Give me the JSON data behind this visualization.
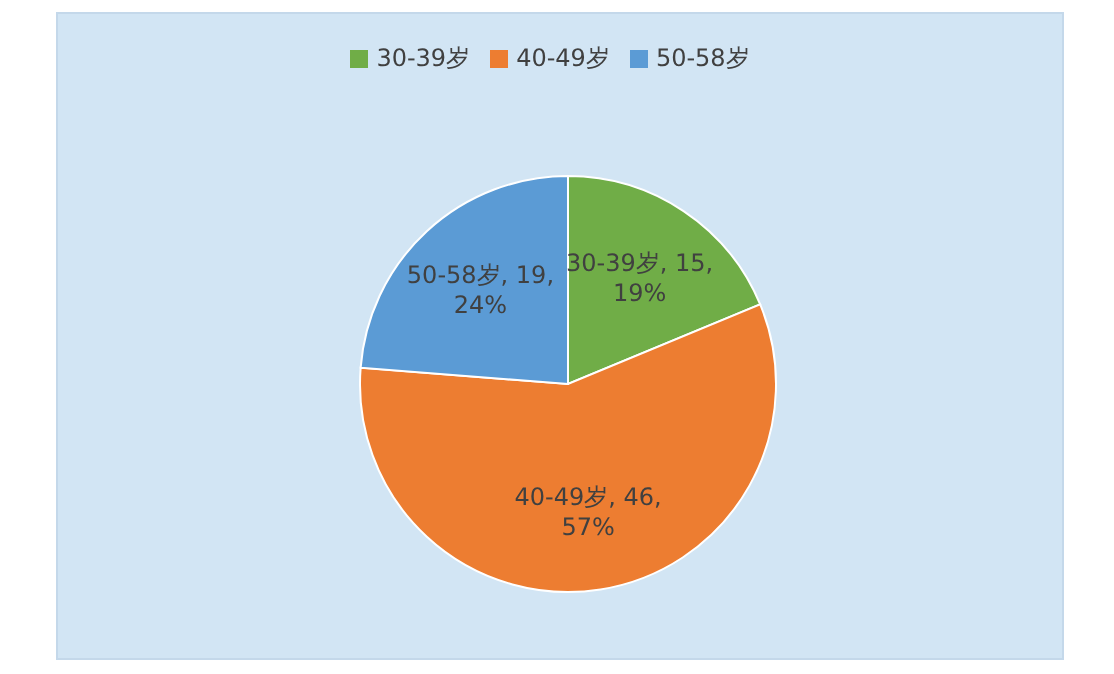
{
  "chart_data": {
    "type": "pie",
    "categories": [
      "30-39岁",
      "40-49岁",
      "50-58岁"
    ],
    "values": [
      15,
      46,
      19
    ],
    "colors": [
      "#70ad47",
      "#ed7d31",
      "#5b9bd5"
    ],
    "value_labels": [
      "30-39岁, 15, 19%",
      "40-49岁, 46, 57%",
      "50-58岁, 19, 24%"
    ],
    "legend": "top"
  }
}
